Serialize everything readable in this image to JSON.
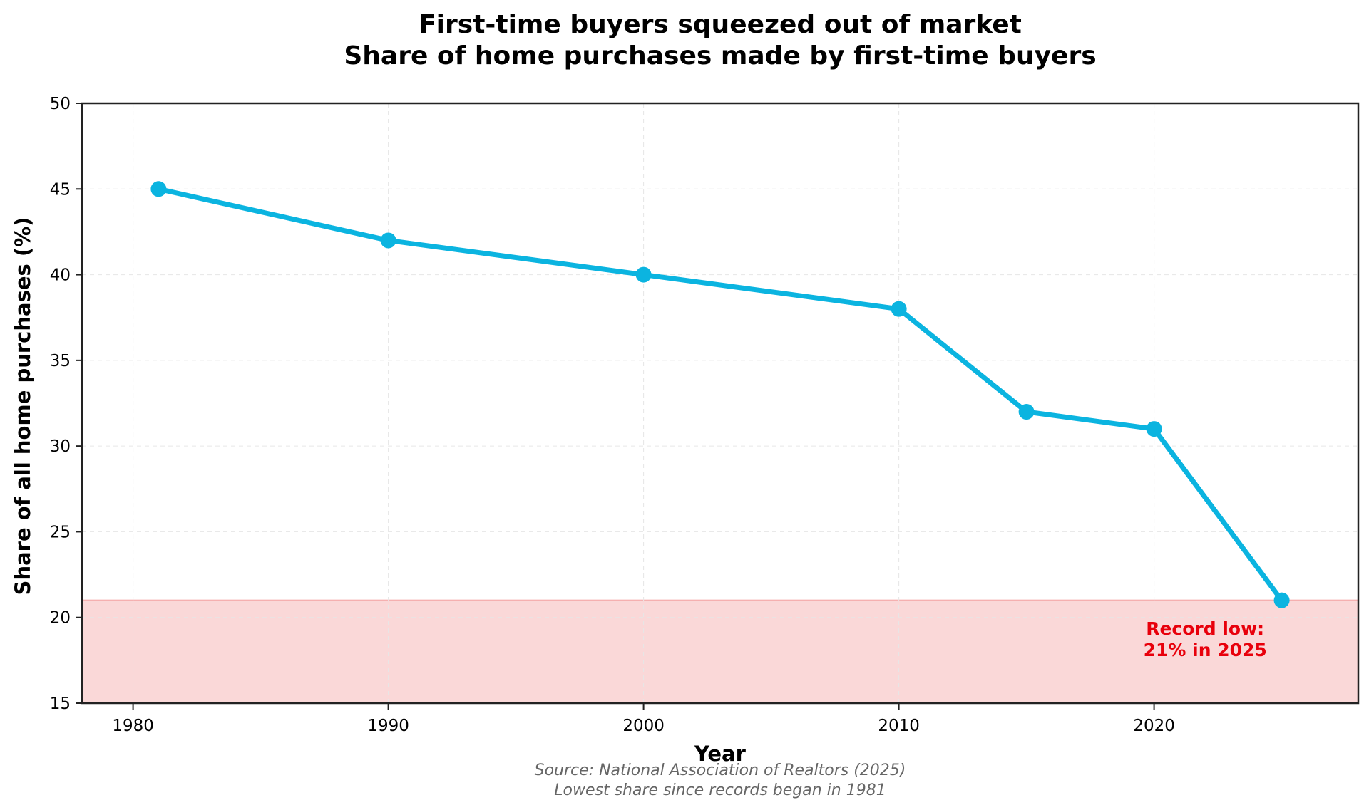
{
  "chart_data": {
    "type": "line",
    "title": "First-time buyers squeezed out of market",
    "subtitle": "Share of home purchases made by first-time buyers",
    "xlabel": "Year",
    "ylabel": "Share of all home purchases (%)",
    "xlim": [
      1978,
      2028
    ],
    "ylim": [
      15,
      50
    ],
    "x_ticks": [
      1980,
      1990,
      2000,
      2010,
      2020
    ],
    "y_ticks": [
      15,
      20,
      25,
      30,
      35,
      40,
      45,
      50
    ],
    "grid": true,
    "series": [
      {
        "name": "First-time buyer share",
        "x": [
          1981,
          1990,
          2000,
          2010,
          2015,
          2020,
          2025
        ],
        "values": [
          45,
          42,
          40,
          38,
          32,
          31,
          21
        ]
      }
    ],
    "shaded_band": {
      "y_from": 15,
      "y_to": 21,
      "color": "#f4a9a8"
    },
    "annotation": {
      "line1": "Record low:",
      "line2": "21% in 2025",
      "x": 2022,
      "y": 18.5,
      "color": "#e8000b"
    },
    "source_line1": "Source: National Association of Realtors (2025)",
    "source_line2": "Lowest share since records began in 1981",
    "colors": {
      "line": "#0bb4e0",
      "axis": "#222222",
      "grid": "#e6e6e6"
    }
  }
}
